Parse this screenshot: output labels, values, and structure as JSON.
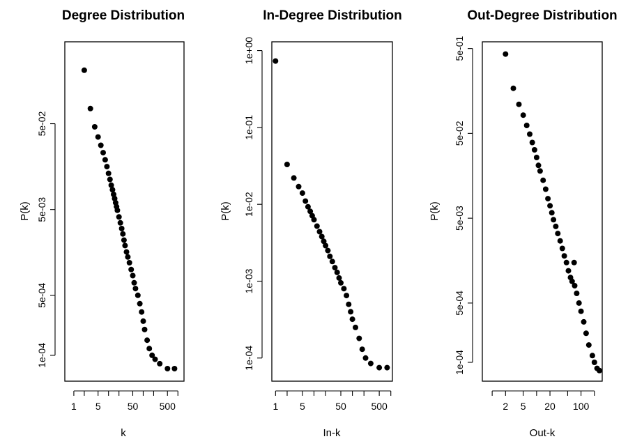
{
  "chart_data": [
    {
      "type": "scatter",
      "title": "Degree Distribution",
      "xlabel": "k",
      "ylabel": "P(k)",
      "xscale": "log",
      "yscale": "log",
      "xlim": [
        0.55,
        1500
      ],
      "ylim": [
        5e-05,
        0.45
      ],
      "xticks": [
        1,
        2,
        5,
        10,
        20,
        50,
        100,
        200,
        500,
        1000
      ],
      "xtick_labels": [
        "1",
        "",
        "5",
        "",
        "",
        "50",
        "",
        "",
        "500",
        ""
      ],
      "yticks": [
        0.0001,
        0.0005,
        0.005,
        0.05
      ],
      "ytick_labels": [
        "1e-04",
        "5e-04",
        "5e-03",
        "5e-02"
      ],
      "points": [
        [
          2,
          0.21
        ],
        [
          3,
          0.075
        ],
        [
          4,
          0.046
        ],
        [
          5,
          0.035
        ],
        [
          6,
          0.028
        ],
        [
          7,
          0.023
        ],
        [
          8,
          0.019
        ],
        [
          9,
          0.0158
        ],
        [
          10,
          0.0132
        ],
        [
          11,
          0.0112
        ],
        [
          12,
          0.0096
        ],
        [
          13,
          0.0085
        ],
        [
          14,
          0.0075
        ],
        [
          15,
          0.0067
        ],
        [
          16,
          0.006
        ],
        [
          17,
          0.0054
        ],
        [
          18,
          0.0049
        ],
        [
          20,
          0.0041
        ],
        [
          22,
          0.0035
        ],
        [
          24,
          0.003
        ],
        [
          26,
          0.0026
        ],
        [
          28,
          0.0022
        ],
        [
          30,
          0.0019
        ],
        [
          33,
          0.0016
        ],
        [
          36,
          0.0014
        ],
        [
          40,
          0.0012
        ],
        [
          45,
          0.001
        ],
        [
          50,
          0.00085
        ],
        [
          55,
          0.0007
        ],
        [
          60,
          0.0006
        ],
        [
          70,
          0.0005
        ],
        [
          80,
          0.0004
        ],
        [
          90,
          0.00032
        ],
        [
          100,
          0.00025
        ],
        [
          110,
          0.0002
        ],
        [
          130,
          0.00015
        ],
        [
          150,
          0.00012
        ],
        [
          180,
          0.0001
        ],
        [
          220,
          9e-05
        ],
        [
          300,
          8e-05
        ],
        [
          500,
          7e-05
        ],
        [
          800,
          7e-05
        ]
      ]
    },
    {
      "type": "scatter",
      "title": "In-Degree Distribution",
      "xlabel": "In-k",
      "ylabel": "P(k)",
      "xscale": "log",
      "yscale": "log",
      "xlim": [
        0.8,
        1100
      ],
      "ylim": [
        5e-05,
        1.3
      ],
      "xticks": [
        1,
        2,
        5,
        10,
        20,
        50,
        100,
        200,
        500,
        1000
      ],
      "xtick_labels": [
        "1",
        "",
        "5",
        "",
        "",
        "50",
        "",
        "",
        "500",
        ""
      ],
      "yticks": [
        0.0001,
        0.001,
        0.01,
        0.1,
        1
      ],
      "ytick_labels": [
        "1e-04",
        "1e-03",
        "1e-02",
        "1e-01",
        "1e+00"
      ],
      "points": [
        [
          1,
          0.73
        ],
        [
          2,
          0.033
        ],
        [
          3,
          0.022
        ],
        [
          4,
          0.017
        ],
        [
          5,
          0.014
        ],
        [
          6,
          0.011
        ],
        [
          7,
          0.0093
        ],
        [
          8,
          0.0081
        ],
        [
          9,
          0.0071
        ],
        [
          10,
          0.0063
        ],
        [
          12,
          0.0052
        ],
        [
          14,
          0.0044
        ],
        [
          16,
          0.0038
        ],
        [
          18,
          0.0033
        ],
        [
          20,
          0.0029
        ],
        [
          23,
          0.0025
        ],
        [
          26,
          0.0021
        ],
        [
          30,
          0.0018
        ],
        [
          35,
          0.0015
        ],
        [
          40,
          0.0013
        ],
        [
          45,
          0.0011
        ],
        [
          50,
          0.00095
        ],
        [
          60,
          0.0008
        ],
        [
          70,
          0.00065
        ],
        [
          80,
          0.0005
        ],
        [
          90,
          0.0004
        ],
        [
          100,
          0.00032
        ],
        [
          120,
          0.00025
        ],
        [
          150,
          0.00018
        ],
        [
          180,
          0.00013
        ],
        [
          220,
          0.0001
        ],
        [
          300,
          8.5e-05
        ],
        [
          500,
          7.5e-05
        ],
        [
          800,
          7.5e-05
        ]
      ]
    },
    {
      "type": "scatter",
      "title": "Out-Degree Distribution",
      "xlabel": "Out-k",
      "ylabel": "P(k)",
      "xscale": "log",
      "yscale": "log",
      "xlim": [
        0.6,
        300
      ],
      "ylim": [
        6e-05,
        0.6
      ],
      "xticks": [
        1,
        2,
        5,
        10,
        20,
        50,
        100,
        200
      ],
      "xtick_labels": [
        "",
        "2",
        "5",
        "",
        "20",
        "",
        "100",
        ""
      ],
      "yticks": [
        0.0001,
        0.0005,
        0.005,
        0.05,
        0.5
      ],
      "ytick_labels": [
        "1e-04",
        "5e-04",
        "5e-03",
        "5e-02",
        "5e-01"
      ],
      "points": [
        [
          2,
          0.43
        ],
        [
          3,
          0.17
        ],
        [
          4,
          0.11
        ],
        [
          5,
          0.082
        ],
        [
          6,
          0.062
        ],
        [
          7,
          0.049
        ],
        [
          8,
          0.039
        ],
        [
          9,
          0.032
        ],
        [
          10,
          0.026
        ],
        [
          11,
          0.021
        ],
        [
          12,
          0.018
        ],
        [
          14,
          0.014
        ],
        [
          16,
          0.011
        ],
        [
          18,
          0.0085
        ],
        [
          20,
          0.007
        ],
        [
          22,
          0.0058
        ],
        [
          24,
          0.0048
        ],
        [
          27,
          0.004
        ],
        [
          30,
          0.0033
        ],
        [
          34,
          0.0027
        ],
        [
          38,
          0.0022
        ],
        [
          42,
          0.0018
        ],
        [
          47,
          0.0015
        ],
        [
          52,
          0.0012
        ],
        [
          58,
          0.001
        ],
        [
          63,
          0.0009
        ],
        [
          70,
          0.0015
        ],
        [
          72,
          0.0008
        ],
        [
          80,
          0.00065
        ],
        [
          90,
          0.0005
        ],
        [
          100,
          0.0004
        ],
        [
          115,
          0.0003
        ],
        [
          130,
          0.00022
        ],
        [
          150,
          0.00016
        ],
        [
          180,
          0.00012
        ],
        [
          200,
          0.0001
        ],
        [
          230,
          8.5e-05
        ],
        [
          260,
          8e-05
        ]
      ]
    }
  ]
}
